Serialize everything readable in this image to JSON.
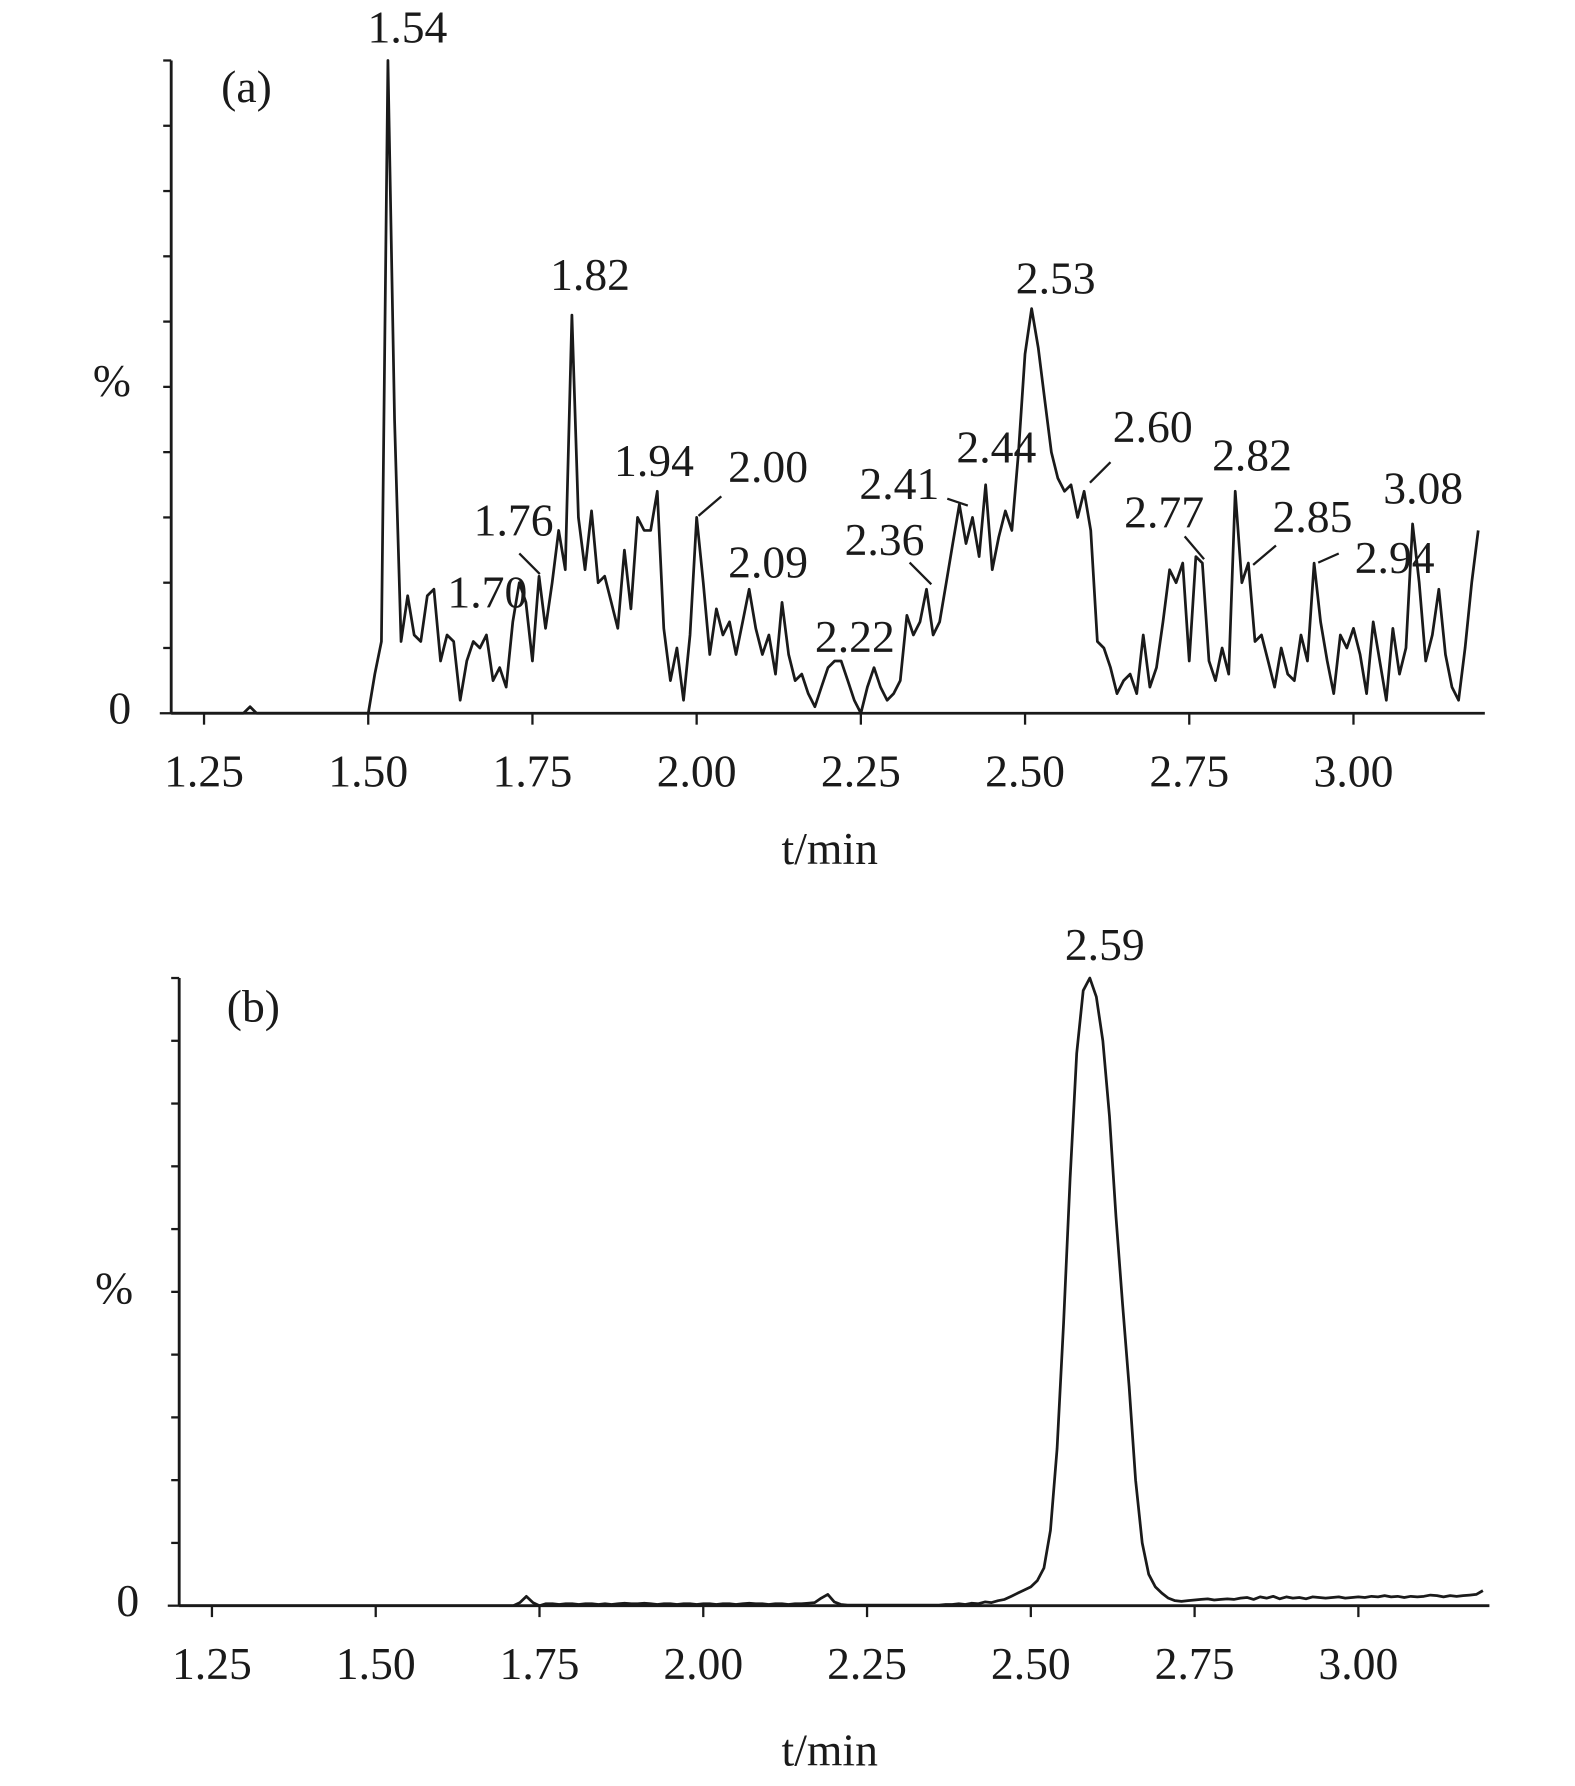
{
  "chart_data": [
    {
      "type": "line",
      "panel_label": "(a)",
      "ylabel": "%",
      "xlabel": "t/min",
      "color": "#1a1a1a",
      "xlim": [
        1.2,
        3.2
      ],
      "ylim": [
        0,
        100
      ],
      "xticks": [
        1.25,
        {
          "value": 1.5,
          "label": "1.50"
        },
        1.75,
        {
          "value": 2.0,
          "label": "2.00"
        },
        2.25,
        {
          "value": 2.5,
          "label": "2.50"
        },
        2.75,
        {
          "value": 3.0,
          "label": "3.00"
        }
      ],
      "yticks": [
        0
      ],
      "yminorticks": [
        10,
        20,
        30,
        40,
        50,
        60,
        70,
        80,
        90,
        100
      ],
      "peak_labels": [
        "1.54",
        "1.82",
        "2.53",
        "1.94",
        "2.00",
        "1.76",
        "1.70",
        "2.09",
        "2.22",
        "2.36",
        "2.41",
        "2.44",
        "2.60",
        "2.82",
        "2.77",
        "2.85",
        "3.08",
        "2.94"
      ],
      "x": [
        1.2,
        1.21,
        1.22,
        1.23,
        1.24,
        1.25,
        1.26,
        1.27,
        1.28,
        1.29,
        1.3,
        1.31,
        1.32,
        1.33,
        1.34,
        1.35,
        1.36,
        1.37,
        1.38,
        1.39,
        1.4,
        1.41,
        1.42,
        1.43,
        1.44,
        1.45,
        1.46,
        1.47,
        1.48,
        1.49,
        1.5,
        1.51,
        1.52,
        1.53,
        1.54,
        1.55,
        1.56,
        1.57,
        1.58,
        1.59,
        1.6,
        1.61,
        1.62,
        1.63,
        1.64,
        1.65,
        1.66,
        1.67,
        1.68,
        1.69,
        1.7,
        1.71,
        1.72,
        1.73,
        1.74,
        1.75,
        1.76,
        1.77,
        1.78,
        1.79,
        1.8,
        1.81,
        1.82,
        1.83,
        1.84,
        1.85,
        1.86,
        1.87,
        1.88,
        1.89,
        1.9,
        1.91,
        1.92,
        1.93,
        1.94,
        1.95,
        1.96,
        1.97,
        1.98,
        1.99,
        2.0,
        2.01,
        2.02,
        2.03,
        2.04,
        2.05,
        2.06,
        2.07,
        2.08,
        2.09,
        2.1,
        2.11,
        2.12,
        2.13,
        2.14,
        2.15,
        2.16,
        2.17,
        2.18,
        2.19,
        2.2,
        2.21,
        2.22,
        2.23,
        2.24,
        2.25,
        2.26,
        2.27,
        2.28,
        2.29,
        2.3,
        2.31,
        2.32,
        2.33,
        2.34,
        2.35,
        2.36,
        2.37,
        2.38,
        2.39,
        2.4,
        2.41,
        2.42,
        2.43,
        2.44,
        2.45,
        2.46,
        2.47,
        2.48,
        2.49,
        2.5,
        2.51,
        2.52,
        2.53,
        2.54,
        2.55,
        2.56,
        2.57,
        2.58,
        2.59,
        2.6,
        2.61,
        2.62,
        2.63,
        2.64,
        2.65,
        2.66,
        2.67,
        2.68,
        2.69,
        2.7,
        2.71,
        2.72,
        2.73,
        2.74,
        2.75,
        2.76,
        2.77,
        2.78,
        2.79,
        2.8,
        2.81,
        2.82,
        2.83,
        2.84,
        2.85,
        2.86,
        2.87,
        2.88,
        2.89,
        2.9,
        2.91,
        2.92,
        2.93,
        2.94,
        2.95,
        2.96,
        2.97,
        2.98,
        2.99,
        3.0,
        3.01,
        3.02,
        3.03,
        3.04,
        3.05,
        3.06,
        3.07,
        3.08,
        3.09,
        3.1,
        3.11,
        3.12,
        3.13,
        3.14,
        3.15,
        3.16,
        3.17,
        3.18,
        3.19
      ],
      "values": [
        0,
        0,
        0,
        0,
        0,
        0,
        0,
        0,
        0,
        0,
        0,
        0,
        1,
        0,
        0,
        0,
        0,
        0,
        0,
        0,
        0,
        0,
        0,
        0,
        0,
        0,
        0,
        0,
        0,
        0,
        0,
        6,
        11,
        100,
        45,
        11,
        18,
        12,
        11,
        18,
        19,
        8,
        12,
        11,
        2,
        8,
        11,
        10,
        12,
        5,
        7,
        4,
        14,
        20,
        17,
        8,
        21,
        13,
        20,
        28,
        22,
        61,
        30,
        22,
        31,
        20,
        21,
        17,
        13,
        25,
        16,
        30,
        28,
        28,
        34,
        13,
        5,
        10,
        2,
        12,
        30,
        20,
        9,
        16,
        12,
        14,
        9,
        14,
        19,
        13,
        9,
        12,
        6,
        17,
        9,
        5,
        6,
        3,
        1,
        4,
        7,
        8,
        8,
        5,
        2,
        0,
        4,
        7,
        4,
        2,
        3,
        5,
        15,
        12,
        14,
        19,
        12,
        14,
        20,
        26,
        32,
        26,
        30,
        24,
        35,
        22,
        27,
        31,
        28,
        40,
        55,
        62,
        56,
        48,
        40,
        36,
        34,
        35,
        30,
        34,
        28,
        11,
        10,
        7,
        3,
        5,
        6,
        3,
        12,
        4,
        7,
        14,
        22,
        20,
        23,
        8,
        24,
        23,
        8,
        5,
        10,
        6,
        34,
        20,
        23,
        11,
        12,
        8,
        4,
        10,
        6,
        5,
        12,
        8,
        23,
        14,
        8,
        3,
        12,
        10,
        13,
        9,
        3,
        14,
        8,
        2,
        13,
        6,
        10,
        29,
        20,
        8,
        12,
        19,
        9,
        4,
        2,
        10,
        20,
        28
      ]
    },
    {
      "type": "line",
      "panel_label": "(b)",
      "ylabel": "%",
      "xlabel": "t/min",
      "color": "#1a1a1a",
      "xlim": [
        1.2,
        3.2
      ],
      "ylim": [
        0,
        100
      ],
      "xticks": [
        1.25,
        {
          "value": 1.5,
          "label": "1.50"
        },
        1.75,
        {
          "value": 2.0,
          "label": "2.00"
        },
        2.25,
        {
          "value": 2.5,
          "label": "2.50"
        },
        2.75,
        {
          "value": 3.0,
          "label": "3.00"
        }
      ],
      "yticks": [
        0
      ],
      "yminorticks": [
        10,
        20,
        30,
        40,
        50,
        60,
        70,
        80,
        90,
        100
      ],
      "peak_labels": [
        "2.59"
      ],
      "x": [
        1.2,
        1.21,
        1.22,
        1.23,
        1.24,
        1.25,
        1.26,
        1.27,
        1.28,
        1.29,
        1.3,
        1.31,
        1.32,
        1.33,
        1.34,
        1.35,
        1.36,
        1.37,
        1.38,
        1.39,
        1.4,
        1.41,
        1.42,
        1.43,
        1.44,
        1.45,
        1.46,
        1.47,
        1.48,
        1.49,
        1.5,
        1.51,
        1.52,
        1.53,
        1.54,
        1.55,
        1.56,
        1.57,
        1.58,
        1.59,
        1.6,
        1.61,
        1.62,
        1.63,
        1.64,
        1.65,
        1.66,
        1.67,
        1.68,
        1.69,
        1.7,
        1.71,
        1.72,
        1.73,
        1.74,
        1.75,
        1.76,
        1.77,
        1.78,
        1.79,
        1.8,
        1.81,
        1.82,
        1.83,
        1.84,
        1.85,
        1.86,
        1.87,
        1.88,
        1.89,
        1.9,
        1.91,
        1.92,
        1.93,
        1.94,
        1.95,
        1.96,
        1.97,
        1.98,
        1.99,
        2.0,
        2.01,
        2.02,
        2.03,
        2.04,
        2.05,
        2.06,
        2.07,
        2.08,
        2.09,
        2.1,
        2.11,
        2.12,
        2.13,
        2.14,
        2.15,
        2.16,
        2.17,
        2.18,
        2.19,
        2.2,
        2.21,
        2.22,
        2.23,
        2.24,
        2.25,
        2.26,
        2.27,
        2.28,
        2.29,
        2.3,
        2.31,
        2.32,
        2.33,
        2.34,
        2.35,
        2.36,
        2.37,
        2.38,
        2.39,
        2.4,
        2.41,
        2.42,
        2.43,
        2.44,
        2.45,
        2.46,
        2.47,
        2.48,
        2.49,
        2.5,
        2.51,
        2.52,
        2.53,
        2.54,
        2.55,
        2.56,
        2.57,
        2.58,
        2.59,
        2.6,
        2.61,
        2.62,
        2.63,
        2.64,
        2.65,
        2.66,
        2.67,
        2.68,
        2.69,
        2.7,
        2.71,
        2.72,
        2.73,
        2.74,
        2.75,
        2.76,
        2.77,
        2.78,
        2.79,
        2.8,
        2.81,
        2.82,
        2.83,
        2.84,
        2.85,
        2.86,
        2.87,
        2.88,
        2.89,
        2.9,
        2.91,
        2.92,
        2.93,
        2.94,
        2.95,
        2.96,
        2.97,
        2.98,
        2.99,
        3.0,
        3.01,
        3.02,
        3.03,
        3.04,
        3.05,
        3.06,
        3.07,
        3.08,
        3.09,
        3.1,
        3.11,
        3.12,
        3.13,
        3.14,
        3.15,
        3.16,
        3.17,
        3.18,
        3.19
      ],
      "values": [
        0,
        0,
        0,
        0,
        0,
        0,
        0,
        0,
        0,
        0,
        0,
        0,
        0,
        0,
        0,
        0,
        0,
        0,
        0,
        0,
        0,
        0,
        0,
        0,
        0,
        0,
        0,
        0,
        0,
        0,
        0,
        0,
        0,
        0,
        0,
        0,
        0,
        0,
        0,
        0,
        0,
        0,
        0,
        0,
        0,
        0,
        0,
        0,
        0,
        0,
        0,
        0,
        0.5,
        1.5,
        0.5,
        0,
        0.3,
        0.3,
        0.2,
        0.3,
        0.3,
        0.2,
        0.3,
        0.3,
        0.2,
        0.3,
        0.2,
        0.3,
        0.4,
        0.3,
        0.3,
        0.4,
        0.3,
        0.2,
        0.3,
        0.3,
        0.2,
        0.3,
        0.3,
        0.2,
        0.3,
        0.3,
        0.2,
        0.3,
        0.3,
        0.2,
        0.3,
        0.4,
        0.3,
        0.3,
        0.2,
        0.3,
        0.3,
        0.2,
        0.3,
        0.3,
        0.4,
        0.5,
        1.2,
        1.8,
        0.6,
        0.2,
        0.1,
        0.1,
        0.1,
        0.1,
        0.1,
        0.1,
        0.1,
        0.1,
        0.1,
        0.1,
        0.1,
        0.1,
        0.1,
        0.1,
        0.1,
        0.2,
        0.2,
        0.3,
        0.2,
        0.4,
        0.3,
        0.6,
        0.5,
        0.8,
        1,
        1.5,
        2,
        2.5,
        3,
        4,
        6,
        12,
        25,
        45,
        68,
        88,
        98,
        100,
        97,
        90,
        78,
        62,
        48,
        35,
        20,
        10,
        5,
        3,
        2,
        1.2,
        0.8,
        0.7,
        0.8,
        0.9,
        1,
        1.1,
        0.9,
        1,
        1.1,
        1,
        1.2,
        1.3,
        1,
        1.4,
        1.2,
        1.5,
        1.1,
        1.4,
        1.2,
        1.3,
        1.1,
        1.4,
        1.3,
        1.2,
        1.3,
        1.4,
        1.2,
        1.3,
        1.4,
        1.3,
        1.5,
        1.4,
        1.6,
        1.4,
        1.5,
        1.3,
        1.5,
        1.4,
        1.5,
        1.7,
        1.6,
        1.4,
        1.6,
        1.5,
        1.6,
        1.7,
        1.8,
        2.4
      ]
    }
  ]
}
